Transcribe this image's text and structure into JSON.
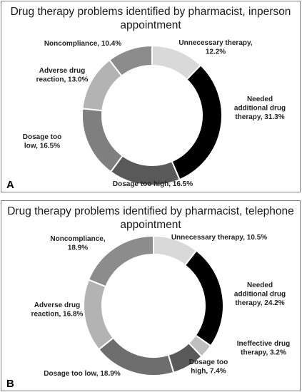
{
  "chart_data": [
    {
      "type": "pie",
      "panel_label": "A",
      "title_lines": [
        "Drug therapy problems identified by pharmacist, inperson",
        "appointment"
      ],
      "categories": [
        "Unnecessary therapy",
        "Needed additional drug therapy",
        "Dosage too high",
        "Dosage too low",
        "Adverse drug reaction",
        "Noncompliance"
      ],
      "values": [
        12.2,
        31.3,
        16.5,
        16.5,
        13.0,
        10.4
      ],
      "colors": [
        "#d9d9d9",
        "#000000",
        "#595959",
        "#7f7f7f",
        "#b3b3b3",
        "#8c8c8c"
      ],
      "labels": [
        [
          "Unnecessary therapy,",
          "12.2%"
        ],
        [
          "Needed",
          "additional drug",
          "therapy, 31.3%"
        ],
        [
          "Dosage too high, 16.5%"
        ],
        [
          "Dosage too",
          "low, 16.5%"
        ],
        [
          "Adverse drug",
          "reaction, 13.0%"
        ],
        [
          "Noncompliance, 10.4%"
        ]
      ]
    },
    {
      "type": "pie",
      "panel_label": "B",
      "title_lines": [
        "Drug therapy problems identified by pharmacist, telephone",
        "appointment"
      ],
      "categories": [
        "Unnecessary therapy",
        "Needed additional drug therapy",
        "Ineffective drug therapy",
        "Dosage too high",
        "Dosage too low",
        "Adverse drug reaction",
        "Noncompliance"
      ],
      "values": [
        10.5,
        24.2,
        3.2,
        7.4,
        18.9,
        16.8,
        18.9
      ],
      "colors": [
        "#d9d9d9",
        "#000000",
        "#bfbfbf",
        "#595959",
        "#6e6e6e",
        "#b3b3b3",
        "#8c8c8c"
      ],
      "labels": [
        [
          "Unnecessary therapy, 10.5%"
        ],
        [
          "Needed",
          "additional drug",
          "therapy, 24.2%"
        ],
        [
          "Ineffective drug",
          "therapy, 3.2%"
        ],
        [
          "Dosage too",
          "high, 7.4%"
        ],
        [
          "Dosage too low, 18.9%"
        ],
        [
          "Adverse drug",
          "reaction, 16.8%"
        ],
        [
          "Noncompliance,",
          "18.9%"
        ]
      ]
    }
  ]
}
